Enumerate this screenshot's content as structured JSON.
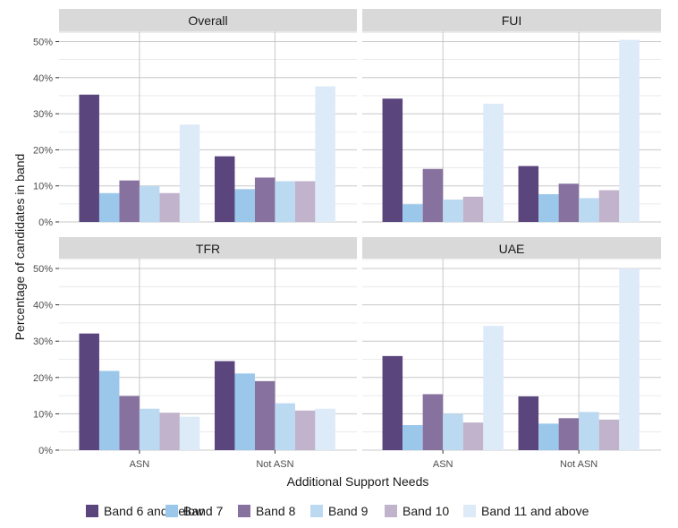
{
  "chart_data": {
    "type": "bar",
    "xlabel": "Additional Support Needs",
    "ylabel": "Percentage of candidates in band",
    "ylim": [
      0,
      50
    ],
    "yticks": [
      "0%",
      "10%",
      "20%",
      "30%",
      "40%",
      "50%"
    ],
    "categories": [
      "ASN",
      "Not ASN"
    ],
    "legend": {
      "position": "bottom",
      "entries": [
        {
          "name": "Band 6 and below",
          "color": "#5b457d"
        },
        {
          "name": "Band 7",
          "color": "#9bc8ea"
        },
        {
          "name": "Band 8",
          "color": "#87729f"
        },
        {
          "name": "Band 9",
          "color": "#bcd9f2"
        },
        {
          "name": "Band 10",
          "color": "#c0b3cb"
        },
        {
          "name": "Band 11 and above",
          "color": "#ddeaf8"
        }
      ]
    },
    "facets": [
      {
        "title": "Overall",
        "series": [
          {
            "name": "Band 6 and below",
            "values": [
              35.3,
              18.2
            ]
          },
          {
            "name": "Band 7",
            "values": [
              8.0,
              9.1
            ]
          },
          {
            "name": "Band 8",
            "values": [
              11.5,
              12.3
            ]
          },
          {
            "name": "Band 9",
            "values": [
              9.9,
              11.3
            ]
          },
          {
            "name": "Band 10",
            "values": [
              8.0,
              11.3
            ]
          },
          {
            "name": "Band 11 and above",
            "values": [
              27.0,
              37.6
            ]
          }
        ]
      },
      {
        "title": "FUI",
        "series": [
          {
            "name": "Band 6 and below",
            "values": [
              34.2,
              15.5
            ]
          },
          {
            "name": "Band 7",
            "values": [
              4.9,
              7.7
            ]
          },
          {
            "name": "Band 8",
            "values": [
              14.7,
              10.6
            ]
          },
          {
            "name": "Band 9",
            "values": [
              6.2,
              6.6
            ]
          },
          {
            "name": "Band 10",
            "values": [
              7.0,
              8.8
            ]
          },
          {
            "name": "Band 11 and above",
            "values": [
              32.8,
              50.5
            ]
          }
        ]
      },
      {
        "title": "TFR",
        "series": [
          {
            "name": "Band 6 and below",
            "values": [
              32.1,
              24.5
            ]
          },
          {
            "name": "Band 7",
            "values": [
              21.8,
              21.1
            ]
          },
          {
            "name": "Band 8",
            "values": [
              14.9,
              19.0
            ]
          },
          {
            "name": "Band 9",
            "values": [
              11.4,
              12.9
            ]
          },
          {
            "name": "Band 10",
            "values": [
              10.3,
              10.9
            ]
          },
          {
            "name": "Band 11 and above",
            "values": [
              9.2,
              11.4
            ]
          }
        ]
      },
      {
        "title": "UAE",
        "series": [
          {
            "name": "Band 6 and below",
            "values": [
              25.9,
              14.8
            ]
          },
          {
            "name": "Band 7",
            "values": [
              6.9,
              7.3
            ]
          },
          {
            "name": "Band 8",
            "values": [
              15.4,
              8.8
            ]
          },
          {
            "name": "Band 9",
            "values": [
              10.0,
              10.5
            ]
          },
          {
            "name": "Band 10",
            "values": [
              7.6,
              8.4
            ]
          },
          {
            "name": "Band 11 and above",
            "values": [
              34.2,
              50.0
            ]
          }
        ]
      }
    ]
  }
}
